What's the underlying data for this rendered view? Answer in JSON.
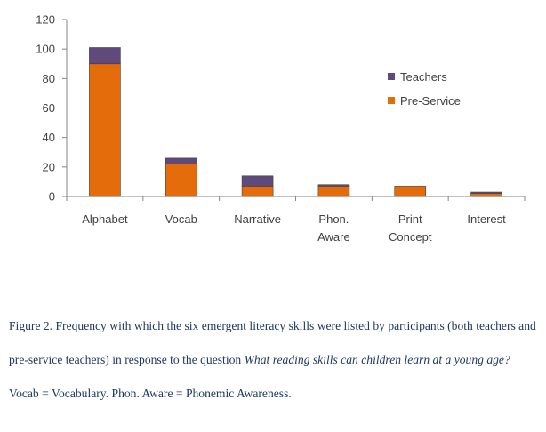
{
  "chart_data": {
    "type": "bar",
    "stacked": true,
    "categories": [
      "Alphabet",
      "Vocab",
      "Narrative",
      "Phon. Aware",
      "Print Concept",
      "Interest"
    ],
    "category_lines": [
      [
        "Alphabet"
      ],
      [
        "Vocab"
      ],
      [
        "Narrative"
      ],
      [
        "Phon.",
        "Aware"
      ],
      [
        "Print",
        "Concept"
      ],
      [
        "Interest"
      ]
    ],
    "series": [
      {
        "name": "Pre-Service",
        "color": "#e46c0a",
        "values": [
          90,
          22,
          7,
          7,
          7,
          2
        ]
      },
      {
        "name": "Teachers",
        "color": "#604a7b",
        "values": [
          11,
          4,
          7,
          1,
          0,
          1
        ]
      }
    ],
    "ylim": [
      0,
      120
    ],
    "yticks": [
      "0",
      "20",
      "40",
      "60",
      "80",
      "100",
      "120"
    ],
    "grid": false,
    "legend_position": "right",
    "legend": [
      "Teachers",
      "Pre-Service"
    ]
  },
  "caption": {
    "before_question": "Figure 2. Frequency with which the six emergent literacy skills were listed by participants (both teachers and pre-service teachers) in response to the question ",
    "question": "What reading skills can children learn at a young age?",
    "after_question": " Vocab = Vocabulary. Phon. Aware = Phonemic Awareness."
  }
}
